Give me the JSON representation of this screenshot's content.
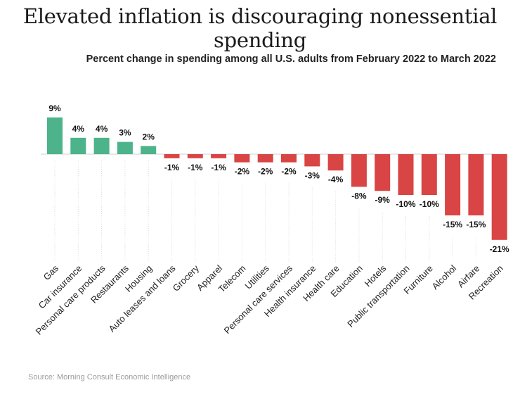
{
  "title": "Elevated inflation is discouraging nonessential spending",
  "subtitle": "Percent change in spending among all U.S. adults from February 2022 to March 2022",
  "source": "Source: Morning Consult Economic Intelligence",
  "colors": {
    "positive": "#4db38a",
    "negative": "#d94444",
    "gridline": "#dcdcdc",
    "zero_line": "#cfcfcf"
  },
  "chart_data": {
    "type": "bar",
    "title": "Elevated inflation is discouraging nonessential spending",
    "subtitle": "Percent change in spending among all U.S. adults from February 2022 to March 2022",
    "xlabel": "",
    "ylabel": "",
    "unit": "%",
    "grid": "vertical dotted lines",
    "categories": [
      "Gas",
      "Car insurance",
      "Personal care products",
      "Restaurants",
      "Housing",
      "Auto leases and loans",
      "Grocery",
      "Apparel",
      "Telecom",
      "Utilities",
      "Personal care services",
      "Health insurance",
      "Health care",
      "Education",
      "Hotels",
      "Public transportation",
      "Furniture",
      "Alcohol",
      "Airfare",
      "Recreation"
    ],
    "values": [
      9,
      4,
      4,
      3,
      2,
      -1,
      -1,
      -1,
      -2,
      -2,
      -2,
      -3,
      -4,
      -8,
      -9,
      -10,
      -10,
      -15,
      -15,
      -21
    ],
    "labels": [
      "9%",
      "4%",
      "4%",
      "3%",
      "2%",
      "-1%",
      "-1%",
      "-1%",
      "-2%",
      "-2%",
      "-2%",
      "-3%",
      "-4%",
      "-8%",
      "-9%",
      "-10%",
      "-10%",
      "-15%",
      "-15%",
      "-21%"
    ]
  }
}
